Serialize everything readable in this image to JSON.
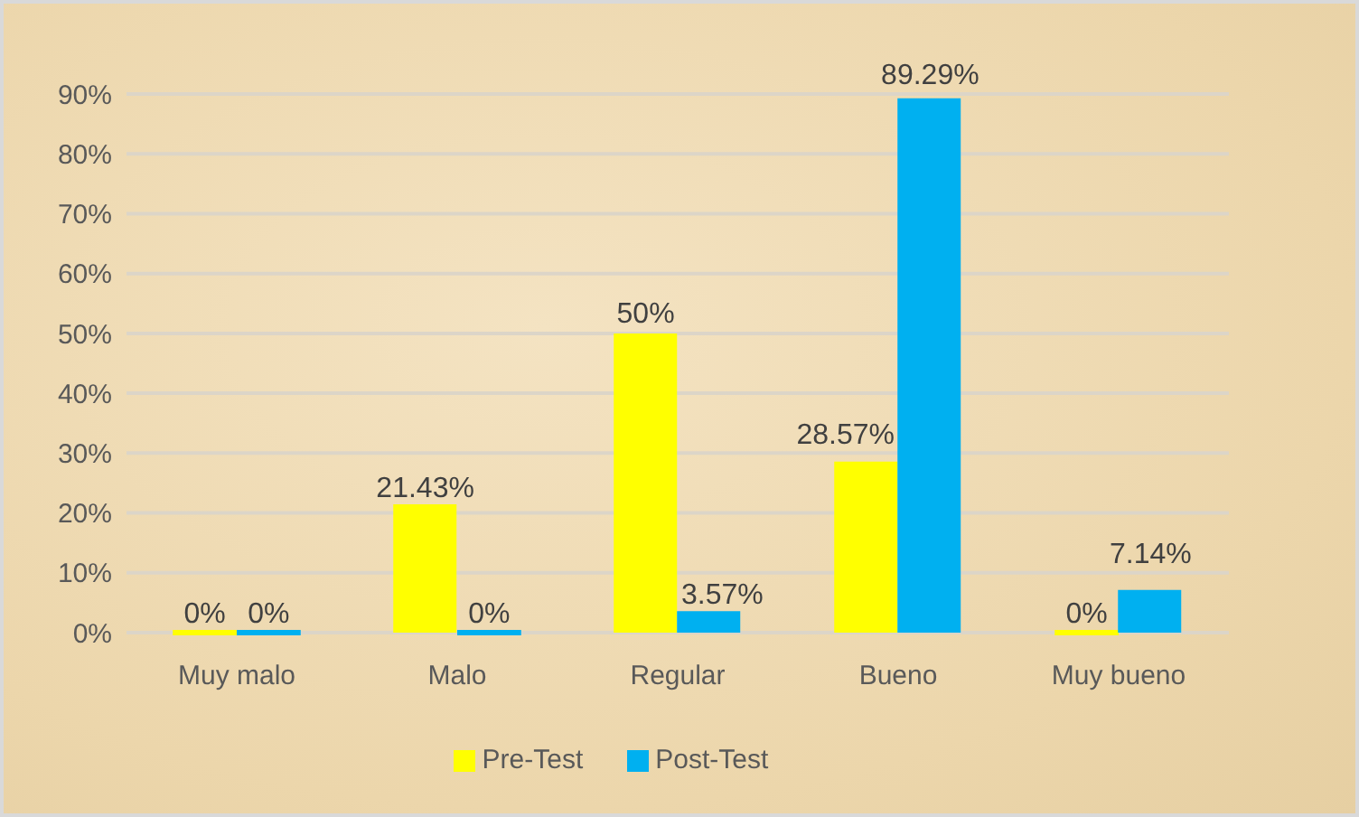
{
  "chart_data": {
    "type": "bar",
    "categories": [
      "Muy malo",
      "Malo",
      "Regular",
      "Bueno",
      "Muy bueno"
    ],
    "series": [
      {
        "name": "Pre-Test",
        "color": "#ffff00",
        "values": [
          0,
          21.43,
          50,
          28.57,
          0
        ],
        "value_labels": [
          "0%",
          "21.43%",
          "50%",
          "28.57%",
          "0%"
        ]
      },
      {
        "name": "Post-Test",
        "color": "#00b0f0",
        "values": [
          0,
          0,
          3.57,
          89.29,
          7.14
        ],
        "value_labels": [
          "0%",
          "0%",
          "3.57%",
          "89.29%",
          "7.14%"
        ]
      }
    ],
    "ylim": [
      0,
      90
    ],
    "yticks": [
      {
        "value": 0,
        "label": "0%"
      },
      {
        "value": 10,
        "label": "10%"
      },
      {
        "value": 20,
        "label": "20%"
      },
      {
        "value": 30,
        "label": "30%"
      },
      {
        "value": 40,
        "label": "40%"
      },
      {
        "value": 50,
        "label": "50%"
      },
      {
        "value": 60,
        "label": "60%"
      },
      {
        "value": 70,
        "label": "70%"
      },
      {
        "value": 80,
        "label": "80%"
      },
      {
        "value": 90,
        "label": "90%"
      }
    ],
    "grid": "y",
    "legend": "bottom"
  }
}
